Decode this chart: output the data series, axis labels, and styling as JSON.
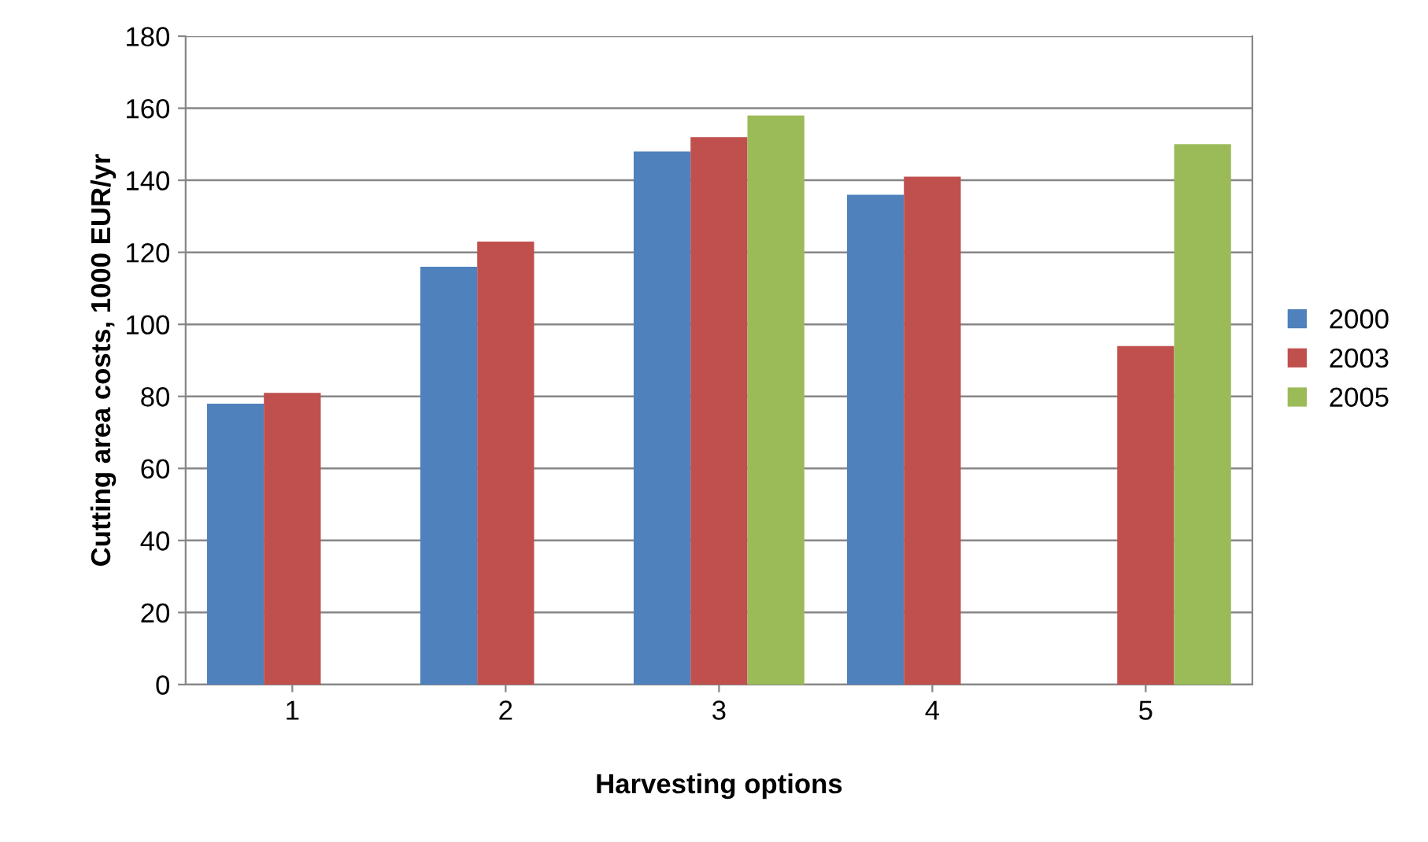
{
  "chart_data": {
    "type": "bar",
    "xlabel": "Harvesting options",
    "ylabel": "Cutting area costs, 1000 EUR/yr",
    "categories": [
      "1",
      "2",
      "3",
      "4",
      "5"
    ],
    "series": [
      {
        "name": "2000",
        "color": "#4f81bd",
        "values": [
          78,
          116,
          148,
          136,
          null
        ]
      },
      {
        "name": "2003",
        "color": "#c0504d",
        "values": [
          81,
          123,
          152,
          141,
          94
        ]
      },
      {
        "name": "2005",
        "color": "#9bbb59",
        "values": [
          null,
          null,
          158,
          null,
          150
        ]
      }
    ],
    "ylim": [
      0,
      180
    ],
    "yticks": [
      0,
      20,
      40,
      60,
      80,
      100,
      120,
      140,
      160,
      180
    ],
    "grid": "y",
    "legend": "right"
  }
}
